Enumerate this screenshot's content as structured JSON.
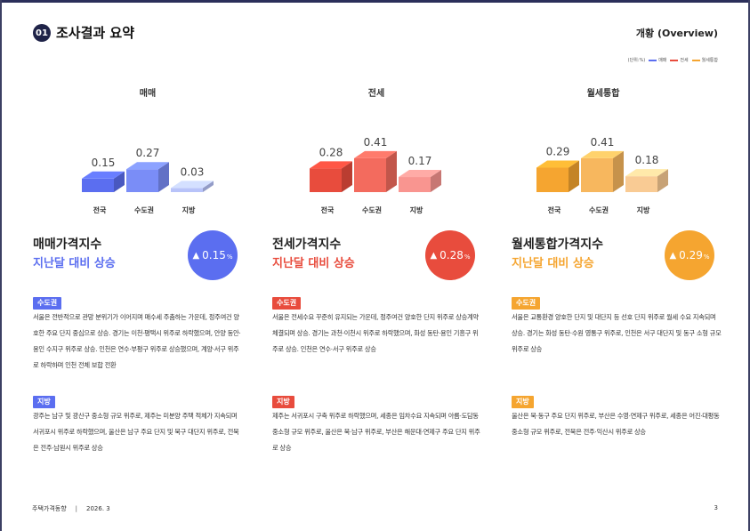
{
  "header": {
    "section_number": "01",
    "section_title": "조사결과 요약",
    "overview_label": "개황 (Overview)"
  },
  "legend": {
    "unit_label": "(단위:%)",
    "items": [
      {
        "label": "매매",
        "color": "#5b6ef0"
      },
      {
        "label": "전세",
        "color": "#e84c3d"
      },
      {
        "label": "월세통합",
        "color": "#f5a530"
      }
    ]
  },
  "chart_data": [
    {
      "type": "bar",
      "title": "매매",
      "categories": [
        "전국",
        "수도권",
        "지방"
      ],
      "values": [
        0.15,
        0.27,
        0.03
      ],
      "value_labels": [
        "0.15",
        "0.27",
        "0.03"
      ],
      "colors": [
        "#5b6ef0",
        "#7a8df7",
        "#b8c3f9"
      ]
    },
    {
      "type": "bar",
      "title": "전세",
      "categories": [
        "전국",
        "수도권",
        "지방"
      ],
      "values": [
        0.28,
        0.41,
        0.17
      ],
      "value_labels": [
        "0.28",
        "0.41",
        "0.17"
      ],
      "colors": [
        "#e84c3d",
        "#f36b5e",
        "#f99590"
      ]
    },
    {
      "type": "bar",
      "title": "월세통합",
      "categories": [
        "전국",
        "수도권",
        "지방"
      ],
      "values": [
        0.29,
        0.41,
        0.18
      ],
      "value_labels": [
        "0.29",
        "0.41",
        "0.18"
      ],
      "colors": [
        "#f5a530",
        "#f7b75e",
        "#f9cb94"
      ]
    }
  ],
  "columns": [
    {
      "index_title": "매매가격지수",
      "index_subtitle": "지난달 대비 상승",
      "accent": "#5b6ef0",
      "badge_arrow": "▲",
      "badge_value": "0.15",
      "badge_unit": "%",
      "metro_tag": "수도권",
      "metro_text": "서울은 전반적으로 관망 분위기가 이어지며 매수세 주춤하는 가운데, 정주여건 양호한 주요 단지 중심으로 상승. 경기는 이천·평택시 위주로 하락했으며, 안양 동안·용인 수지구 위주로 상승. 인천은 연수·부평구 위주로 상승했으며, 계양·서구 위주로 하락하며 인천 전체 보합 전환",
      "local_tag": "지방",
      "local_text": "광주는 남구 및 광산구 중소형 규모 위주로, 제주는 미분양 주택 적체가 지속되며 서귀포시 위주로 하락했으며, 울산은 남구 주요 단지 및 북구 대단지 위주로, 전북은 전주·남원시 위주로 상승"
    },
    {
      "index_title": "전세가격지수",
      "index_subtitle": "지난달 대비 상승",
      "accent": "#e84c3d",
      "badge_arrow": "▲",
      "badge_value": "0.28",
      "badge_unit": "%",
      "metro_tag": "수도권",
      "metro_text": "서울은 전세수요 꾸준히 유지되는 가운데, 정주여건 양호한 단지 위주로 상승계약 체결되며 상승. 경기는 과천·이천시 위주로 하락했으며, 화성 동탄·용인 기흥구 위주로 상승. 인천은 연수·서구 위주로 상승",
      "local_tag": "지방",
      "local_text": "제주는 서귀포시 구축 위주로 하락했으며, 세종은 임차수요 지속되며 아름·도담동 중소형 규모 위주로, 울산은 북·남구 위주로, 부산은 해운대·연제구 주요 단지 위주로 상승"
    },
    {
      "index_title": "월세통합가격지수",
      "index_subtitle": "지난달 대비 상승",
      "accent": "#f5a530",
      "badge_arrow": "▲",
      "badge_value": "0.29",
      "badge_unit": "%",
      "metro_tag": "수도권",
      "metro_text": "서울은 교통환경 양호한 단지 및 대단지 등 선호 단지 위주로 월세 수요 지속되며 상승. 경기는 화성 동탄·수원 영통구 위주로, 인천은 서구 대단지 및 동구 소형 규모 위주로 상승",
      "local_tag": "지방",
      "local_text": "울산은 북·동구 주요 단지 위주로, 부산은 수영·연제구 위주로, 세종은 어진·대평동 중소형 규모 위주로, 전북은 전주·익산시 위주로 상승"
    }
  ],
  "footer": {
    "publication": "주택가격동향",
    "date": "2026. 3",
    "page": "3"
  }
}
